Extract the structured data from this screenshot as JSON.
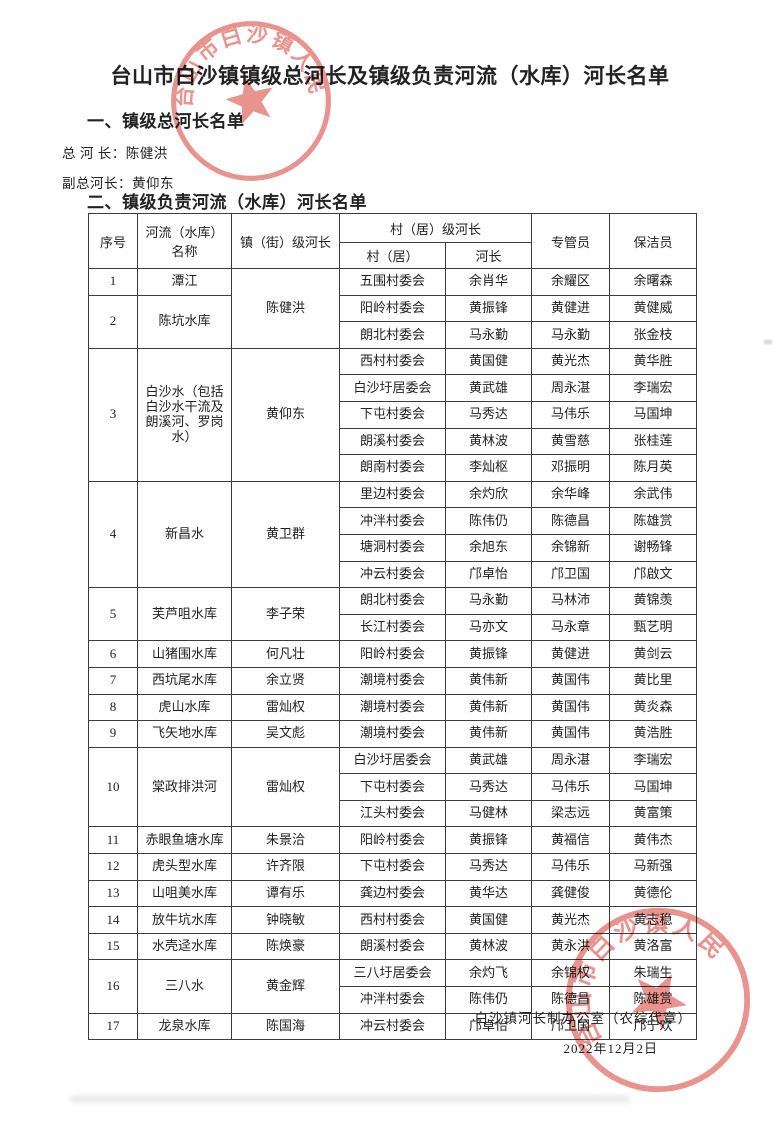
{
  "doc": {
    "title": "台山市白沙镇镇级总河长及镇级负责河流（水库）河长名单",
    "section1": {
      "heading": "一、镇级总河长名单",
      "chief_label": "总 河 长：",
      "chief_name": "陈健洪",
      "deputy_label": "副总河长：",
      "deputy_name": "黄仰东"
    },
    "section2": {
      "heading": "二、镇级负责河流（水库）河长名单"
    },
    "footer": {
      "office": "白沙镇河长制办公室（农综代章）",
      "date": "2022年12月2日"
    },
    "seal": {
      "text": "台山市白沙镇人民政府",
      "color": "#d8453c"
    }
  },
  "table": {
    "headers": {
      "col_index": "序号",
      "col_river": "河流（水库）名称",
      "col_town_chief": "镇（街）级河长",
      "col_village_level_group": "村（居）级河长",
      "col_village": "村（居）",
      "col_village_chief": "河长",
      "col_supervisor": "专管员",
      "col_cleaner": "保洁员"
    },
    "groups": [
      {
        "no": "1",
        "river": "潭江",
        "town_chief": "陈健洪",
        "town_chief_rowspan": 3,
        "rows": [
          {
            "village": "五围村委会",
            "chief": "余肖华",
            "supervisor": "余耀区",
            "cleaner": "余曙森"
          }
        ]
      },
      {
        "no": "2",
        "river": "陈坑水库",
        "town_chief": null,
        "rows": [
          {
            "village": "阳岭村委会",
            "chief": "黄振锋",
            "supervisor": "黄健进",
            "cleaner": "黄健威"
          },
          {
            "village": "朗北村委会",
            "chief": "马永勤",
            "supervisor": "马永勤",
            "cleaner": "张金枝"
          }
        ]
      },
      {
        "no": "3",
        "river": "白沙水（包括白沙水干流及朗溪河、罗岗水）",
        "town_chief": "黄仰东",
        "rows": [
          {
            "village": "西村村委会",
            "chief": "黄国健",
            "supervisor": "黄光杰",
            "cleaner": "黄华胜"
          },
          {
            "village": "白沙圩居委会",
            "chief": "黄武雄",
            "supervisor": "周永湛",
            "cleaner": "李瑞宏"
          },
          {
            "village": "下屯村委会",
            "chief": "马秀达",
            "supervisor": "马伟乐",
            "cleaner": "马国坤"
          },
          {
            "village": "朗溪村委会",
            "chief": "黄林波",
            "supervisor": "黄雪慈",
            "cleaner": "张桂莲"
          },
          {
            "village": "朗南村委会",
            "chief": "李灿枢",
            "supervisor": "邓振明",
            "cleaner": "陈月英"
          }
        ]
      },
      {
        "no": "4",
        "river": "新昌水",
        "town_chief": "黄卫群",
        "rows": [
          {
            "village": "里边村委会",
            "chief": "余灼欣",
            "supervisor": "余华峰",
            "cleaner": "余武伟"
          },
          {
            "village": "冲泮村委会",
            "chief": "陈伟仍",
            "supervisor": "陈德昌",
            "cleaner": "陈雄赏"
          },
          {
            "village": "塘洞村委会",
            "chief": "余旭东",
            "supervisor": "余锦新",
            "cleaner": "谢畅锋"
          },
          {
            "village": "冲云村委会",
            "chief": "邝卓怡",
            "supervisor": "邝卫国",
            "cleaner": "邝啟文"
          }
        ]
      },
      {
        "no": "5",
        "river": "芙芦咀水库",
        "town_chief": "李子荣",
        "rows": [
          {
            "village": "朗北村委会",
            "chief": "马永勤",
            "supervisor": "马林沛",
            "cleaner": "黄锦羡"
          },
          {
            "village": "长江村委会",
            "chief": "马亦文",
            "supervisor": "马永章",
            "cleaner": "甄艺明"
          }
        ]
      },
      {
        "no": "6",
        "river": "山猪围水库",
        "town_chief": "何凡壮",
        "rows": [
          {
            "village": "阳岭村委会",
            "chief": "黄振锋",
            "supervisor": "黄健进",
            "cleaner": "黄剑云"
          }
        ]
      },
      {
        "no": "7",
        "river": "西坑尾水库",
        "town_chief": "余立贤",
        "rows": [
          {
            "village": "潮境村委会",
            "chief": "黄伟新",
            "supervisor": "黄国伟",
            "cleaner": "黄比里"
          }
        ]
      },
      {
        "no": "8",
        "river": "虎山水库",
        "town_chief": "雷灿权",
        "rows": [
          {
            "village": "潮境村委会",
            "chief": "黄伟新",
            "supervisor": "黄国伟",
            "cleaner": "黄炎森"
          }
        ]
      },
      {
        "no": "9",
        "river": "飞矢地水库",
        "town_chief": "吴文彪",
        "rows": [
          {
            "village": "潮境村委会",
            "chief": "黄伟新",
            "supervisor": "黄国伟",
            "cleaner": "黄浩胜"
          }
        ]
      },
      {
        "no": "10",
        "river": "棠政排洪河",
        "town_chief": "雷灿权",
        "rows": [
          {
            "village": "白沙圩居委会",
            "chief": "黄武雄",
            "supervisor": "周永湛",
            "cleaner": "李瑞宏"
          },
          {
            "village": "下屯村委会",
            "chief": "马秀达",
            "supervisor": "马伟乐",
            "cleaner": "马国坤"
          },
          {
            "village": "江头村委会",
            "chief": "马健林",
            "supervisor": "梁志远",
            "cleaner": "黄富策"
          }
        ]
      },
      {
        "no": "11",
        "river": "赤眼鱼塘水库",
        "town_chief": "朱景洽",
        "rows": [
          {
            "village": "阳岭村委会",
            "chief": "黄振锋",
            "supervisor": "黄福信",
            "cleaner": "黄伟杰"
          }
        ]
      },
      {
        "no": "12",
        "river": "虎头型水库",
        "town_chief": "许齐限",
        "rows": [
          {
            "village": "下屯村委会",
            "chief": "马秀达",
            "supervisor": "马伟乐",
            "cleaner": "马新强"
          }
        ]
      },
      {
        "no": "13",
        "river": "山咀美水库",
        "town_chief": "谭有乐",
        "rows": [
          {
            "village": "龚边村委会",
            "chief": "黄华达",
            "supervisor": "龚健俊",
            "cleaner": "黄德伦"
          }
        ]
      },
      {
        "no": "14",
        "river": "放牛坑水库",
        "town_chief": "钟晓敏",
        "rows": [
          {
            "village": "西村村委会",
            "chief": "黄国健",
            "supervisor": "黄光杰",
            "cleaner": "黄志稳"
          }
        ]
      },
      {
        "no": "15",
        "river": "水壳迳水库",
        "town_chief": "陈焕豪",
        "rows": [
          {
            "village": "朗溪村委会",
            "chief": "黄林波",
            "supervisor": "黄永洪",
            "cleaner": "黄洛富"
          }
        ]
      },
      {
        "no": "16",
        "river": "三八水",
        "town_chief": "黄金辉",
        "rows": [
          {
            "village": "三八圩居委会",
            "chief": "余灼飞",
            "supervisor": "余锦权",
            "cleaner": "朱瑞生"
          },
          {
            "village": "冲泮村委会",
            "chief": "陈伟仍",
            "supervisor": "陈德昌",
            "cleaner": "陈雄赏"
          }
        ]
      },
      {
        "no": "17",
        "river": "龙泉水库",
        "town_chief": "陈国海",
        "rows": [
          {
            "village": "冲云村委会",
            "chief": "邝卓怡",
            "supervisor": "邝卫国",
            "cleaner": "邝宁欢"
          }
        ]
      }
    ]
  }
}
